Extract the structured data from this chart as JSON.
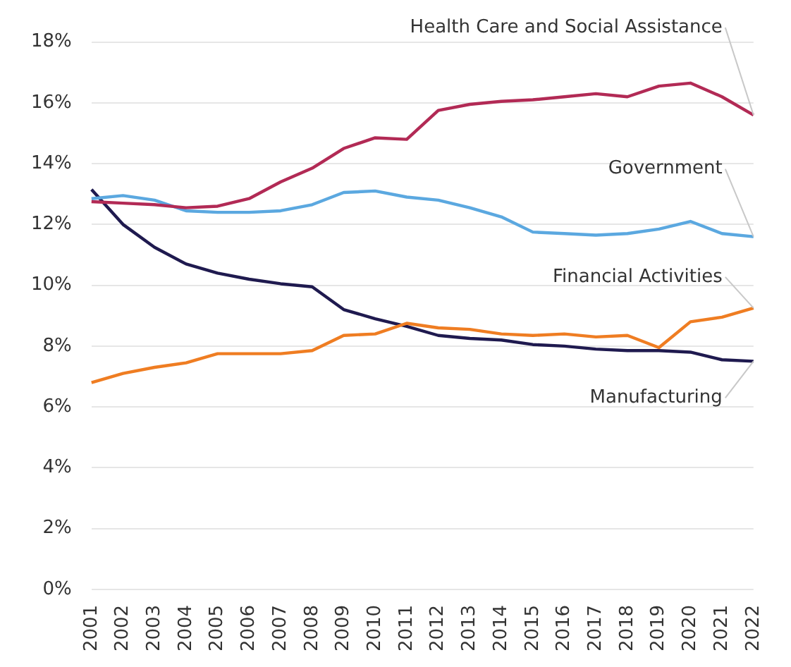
{
  "chart_data": {
    "type": "line",
    "categories": [
      "2001",
      "2002",
      "2003",
      "2004",
      "2005",
      "2006",
      "2007",
      "2008",
      "2009",
      "2010",
      "2011",
      "2012",
      "2013",
      "2014",
      "2015",
      "2016",
      "2017",
      "2018",
      "2019",
      "2020",
      "2021",
      "2022"
    ],
    "series": [
      {
        "name": "Health Care and Social Assistance",
        "color": "#b22a55",
        "values": [
          12.75,
          12.7,
          12.65,
          12.55,
          12.6,
          12.85,
          13.4,
          13.85,
          14.5,
          14.85,
          14.8,
          15.75,
          15.95,
          16.05,
          16.1,
          16.2,
          16.3,
          16.2,
          16.55,
          16.65,
          16.2,
          15.6
        ]
      },
      {
        "name": "Government",
        "color": "#5ba8e0",
        "values": [
          12.85,
          12.95,
          12.8,
          12.45,
          12.4,
          12.4,
          12.45,
          12.65,
          13.05,
          13.1,
          12.9,
          12.8,
          12.55,
          12.25,
          11.75,
          11.7,
          11.65,
          11.7,
          11.85,
          12.1,
          11.7,
          11.6
        ]
      },
      {
        "name": "Financial Activities",
        "color": "#ef7d22",
        "values": [
          6.8,
          7.1,
          7.3,
          7.45,
          7.75,
          7.75,
          7.75,
          7.85,
          8.35,
          8.4,
          8.75,
          8.6,
          8.55,
          8.4,
          8.35,
          8.4,
          8.3,
          8.35,
          7.95,
          8.8,
          8.95,
          9.25
        ]
      },
      {
        "name": "Manufacturing",
        "color": "#1f1a4f",
        "values": [
          13.15,
          12.0,
          11.25,
          10.7,
          10.4,
          10.2,
          10.05,
          9.95,
          9.2,
          8.9,
          8.65,
          8.35,
          8.25,
          8.2,
          8.05,
          8.0,
          7.9,
          7.85,
          7.85,
          7.8,
          7.55,
          7.5
        ]
      }
    ],
    "ylim": [
      0,
      18
    ],
    "yticks": [
      {
        "value": 0,
        "label": "0%"
      },
      {
        "value": 2,
        "label": "2%"
      },
      {
        "value": 4,
        "label": "4%"
      },
      {
        "value": 6,
        "label": "6%"
      },
      {
        "value": 8,
        "label": "8%"
      },
      {
        "value": 10,
        "label": "10%"
      },
      {
        "value": 12,
        "label": "12%"
      },
      {
        "value": 14,
        "label": "14%"
      },
      {
        "value": 16,
        "label": "16%"
      },
      {
        "value": 18,
        "label": "18%"
      }
    ],
    "grid": "y",
    "legend": false,
    "marker": "none",
    "line_style": "solid"
  }
}
